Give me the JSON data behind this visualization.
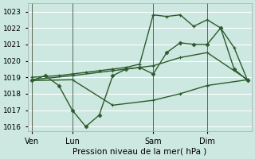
{
  "xlabel": "Pression niveau de la mer( hPa )",
  "bg_color": "#cce8e0",
  "grid_color": "#b8ddd8",
  "line_color": "#2d5a2d",
  "ylim": [
    1015.7,
    1023.5
  ],
  "yticks": [
    1016,
    1017,
    1018,
    1019,
    1020,
    1021,
    1022,
    1023
  ],
  "xtick_labels": [
    "Ven",
    "Lun",
    "Sam",
    "Dim"
  ],
  "xtick_positions": [
    0,
    3,
    9,
    13
  ],
  "total_points": 17,
  "xlim": [
    -0.3,
    16.3
  ],
  "series_a": {
    "x": [
      0,
      1,
      2,
      3,
      4,
      5,
      6,
      7,
      8,
      9,
      10,
      11,
      12,
      13,
      14,
      15,
      16
    ],
    "y": [
      1018.8,
      1019.1,
      1018.5,
      1017.0,
      1016.0,
      1016.7,
      1019.1,
      1019.5,
      1019.6,
      1019.2,
      1020.5,
      1021.1,
      1021.0,
      1021.0,
      1022.0,
      1019.5,
      1018.8
    ]
  },
  "series_b": {
    "x": [
      0,
      1,
      2,
      3,
      4,
      5,
      6,
      7,
      8,
      9,
      10,
      11,
      12,
      13,
      14,
      15,
      16
    ],
    "y": [
      1019.0,
      1019.05,
      1019.1,
      1019.2,
      1019.3,
      1019.4,
      1019.5,
      1019.6,
      1019.8,
      1022.8,
      1022.7,
      1022.8,
      1022.1,
      1022.5,
      1022.0,
      1020.8,
      1018.8
    ]
  },
  "series_c": {
    "x": [
      0,
      3,
      6,
      9,
      11,
      13,
      16
    ],
    "y": [
      1018.85,
      1019.1,
      1019.4,
      1019.7,
      1020.2,
      1020.5,
      1018.85
    ]
  },
  "series_d": {
    "x": [
      0,
      3,
      6,
      9,
      11,
      13,
      16
    ],
    "y": [
      1018.8,
      1018.85,
      1017.3,
      1017.6,
      1018.0,
      1018.5,
      1018.85
    ]
  }
}
